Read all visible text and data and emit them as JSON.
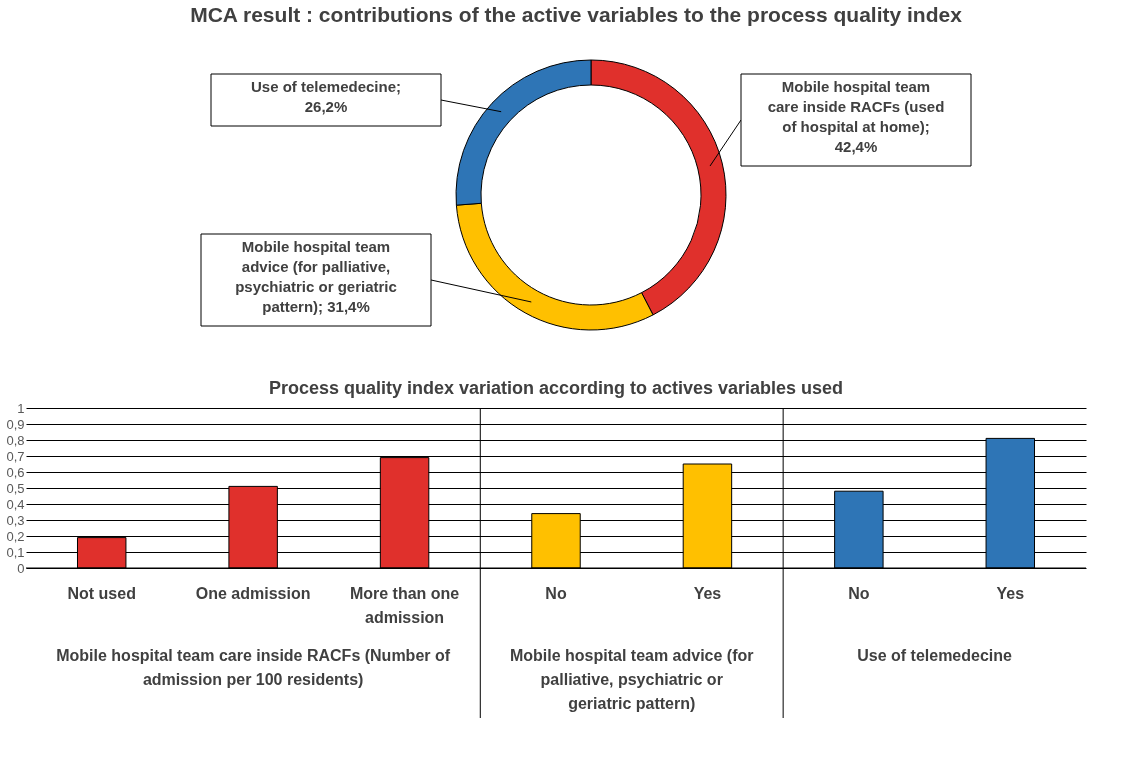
{
  "chart_data": [
    {
      "type": "donut",
      "title": "MCA result : contributions of the active variables to the process quality index",
      "categories": [
        "Mobile hospital team care inside RACFs (used of hospital at home)",
        "Mobile hospital team advice (for palliative, psychiatric or geriatric pattern)",
        "Use of telemedecine"
      ],
      "values": [
        42.4,
        31.4,
        26.2
      ],
      "value_labels": [
        "; 42,4%",
        "; 31,4%",
        "; 26,2%"
      ],
      "colors": [
        "#e0302c",
        "#ffc000",
        "#2e75b6"
      ]
    },
    {
      "type": "bar",
      "title": "Process quality index variation according to actives variables used",
      "categories": [
        "Not used",
        "One admission",
        "More than one admission",
        "No",
        "Yes",
        "No",
        "Yes"
      ],
      "values": [
        0.19,
        0.51,
        0.69,
        0.34,
        0.65,
        0.48,
        0.81
      ],
      "colors": [
        "#e0302c",
        "#e0302c",
        "#e0302c",
        "#ffc000",
        "#ffc000",
        "#2e75b6",
        "#2e75b6"
      ],
      "ylim": [
        0,
        1
      ],
      "yticks": [
        0,
        {
          "value": 0.1,
          "label": "0,1"
        },
        {
          "value": 0.2,
          "label": "0,2"
        },
        {
          "value": 0.3,
          "label": "0,3"
        },
        {
          "value": 0.4,
          "label": "0,4"
        },
        {
          "value": 0.5,
          "label": "0,5"
        },
        {
          "value": 0.6,
          "label": "0,6"
        },
        {
          "value": 0.7,
          "label": "0,7"
        },
        {
          "value": 0.8,
          "label": "0,8"
        },
        {
          "value": 0.9,
          "label": "0,9"
        },
        1
      ],
      "grid": "y",
      "annotations": [
        "Mobile hospital team care inside RACFs (Number of admission per 100 residents)",
        "Mobile hospital team advice (for palliative, psychiatric or geriatric pattern)",
        "Use of telemedecine"
      ]
    }
  ]
}
